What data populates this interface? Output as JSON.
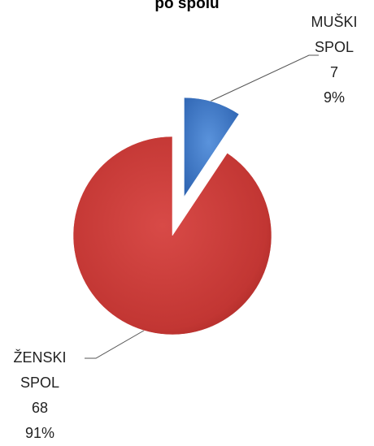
{
  "chart_data": {
    "type": "pie",
    "title": "po spolu",
    "categories": [
      "MUŠKI SPOL",
      "ŽENSKI SPOL"
    ],
    "values": [
      7,
      68
    ],
    "percent_labels": [
      "9%",
      "91%"
    ],
    "colors": [
      "#3a74c8",
      "#c43a37"
    ],
    "exploded": [
      true,
      false
    ]
  }
}
